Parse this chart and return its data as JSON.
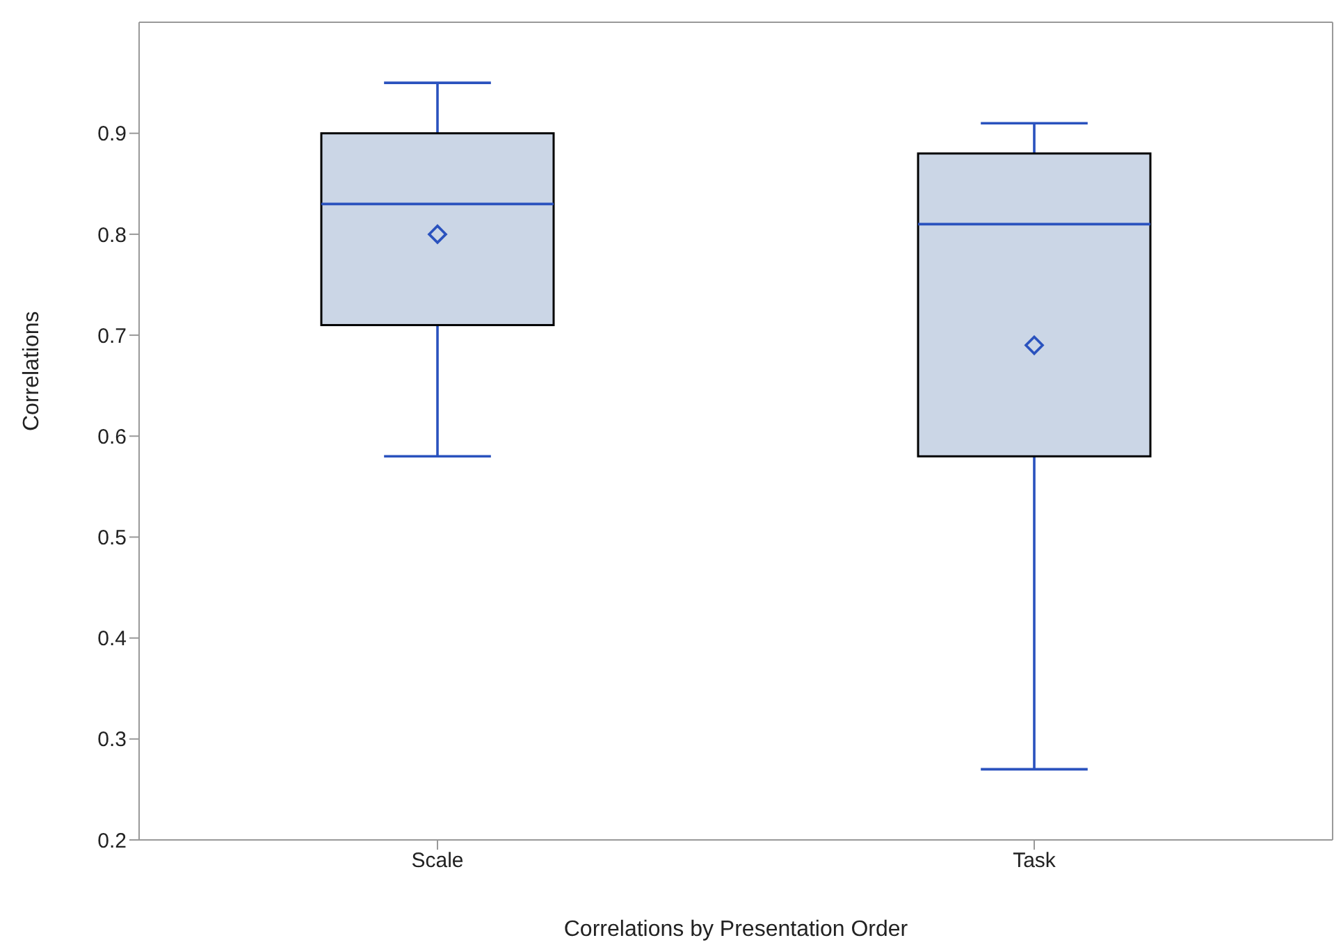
{
  "chart_data": {
    "type": "box",
    "xlabel": "Correlations by Presentation Order",
    "ylabel": "Correlations",
    "categories": [
      "Scale",
      "Task"
    ],
    "boxes": [
      {
        "low": 0.58,
        "q1": 0.71,
        "median": 0.83,
        "q3": 0.9,
        "high": 0.95,
        "mean": 0.8
      },
      {
        "low": 0.27,
        "q1": 0.58,
        "median": 0.81,
        "q3": 0.88,
        "high": 0.91,
        "mean": 0.69
      }
    ],
    "color": "#cbd6e6",
    "ylim": [
      0.2,
      1.01
    ],
    "yticks": [
      0.2,
      0.3,
      0.4,
      0.5,
      0.6,
      0.7,
      0.8,
      0.9
    ],
    "grid": false,
    "marker": "diamond"
  }
}
